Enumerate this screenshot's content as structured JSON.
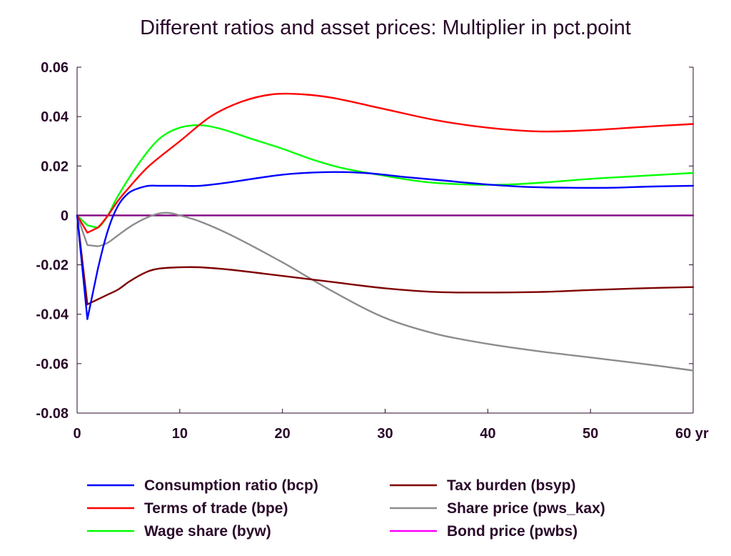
{
  "chart_data": {
    "type": "line",
    "title": "Different ratios and asset prices: Multiplier in pct.point",
    "x_unit_label": "yr",
    "xlim": [
      0,
      60
    ],
    "ylim": [
      -0.08,
      0.06
    ],
    "x_ticks": [
      0,
      10,
      20,
      30,
      40,
      50,
      60
    ],
    "x_tick_labels": [
      "0",
      "10",
      "20",
      "30",
      "40",
      "50",
      "60 yr"
    ],
    "y_ticks": [
      -0.08,
      -0.06,
      -0.04,
      -0.02,
      0,
      0.02,
      0.04,
      0.06
    ],
    "y_tick_labels": [
      "-0.08",
      "-0.06",
      "-0.04",
      "-0.02",
      "0",
      "0.02",
      "0.04",
      "0.06"
    ],
    "grid": false,
    "legend_position": "bottom",
    "series": [
      {
        "name": "Consumption ratio (bcp)",
        "color": "#0000ff",
        "points": [
          [
            0,
            0
          ],
          [
            1,
            -0.042
          ],
          [
            2,
            -0.022
          ],
          [
            3,
            -0.006
          ],
          [
            4,
            0.004
          ],
          [
            5,
            0.009
          ],
          [
            6,
            0.011
          ],
          [
            7,
            0.012
          ],
          [
            8,
            0.012
          ],
          [
            10,
            0.012
          ],
          [
            12,
            0.012
          ],
          [
            15,
            0.0135
          ],
          [
            20,
            0.0165
          ],
          [
            24,
            0.0175
          ],
          [
            28,
            0.0172
          ],
          [
            32,
            0.0155
          ],
          [
            36,
            0.014
          ],
          [
            40,
            0.0125
          ],
          [
            44,
            0.0115
          ],
          [
            48,
            0.0112
          ],
          [
            52,
            0.0112
          ],
          [
            56,
            0.0117
          ],
          [
            60,
            0.012
          ]
        ]
      },
      {
        "name": "Terms of trade (bpe)",
        "color": "#ff0000",
        "points": [
          [
            0,
            0
          ],
          [
            1,
            -0.007
          ],
          [
            2,
            -0.005
          ],
          [
            3,
            0.0
          ],
          [
            4,
            0.006
          ],
          [
            5,
            0.011
          ],
          [
            7,
            0.02
          ],
          [
            10,
            0.03
          ],
          [
            13,
            0.04
          ],
          [
            16,
            0.046
          ],
          [
            19,
            0.049
          ],
          [
            22,
            0.049
          ],
          [
            25,
            0.0475
          ],
          [
            30,
            0.043
          ],
          [
            35,
            0.0385
          ],
          [
            40,
            0.0355
          ],
          [
            45,
            0.034
          ],
          [
            50,
            0.0345
          ],
          [
            55,
            0.0358
          ],
          [
            60,
            0.037
          ]
        ]
      },
      {
        "name": "Wage share (byw)",
        "color": "#00ff00",
        "points": [
          [
            0,
            0
          ],
          [
            1,
            -0.004
          ],
          [
            2,
            -0.005
          ],
          [
            3,
            0.0
          ],
          [
            4,
            0.008
          ],
          [
            6,
            0.021
          ],
          [
            8,
            0.031
          ],
          [
            10,
            0.0355
          ],
          [
            12,
            0.0365
          ],
          [
            14,
            0.035
          ],
          [
            17,
            0.031
          ],
          [
            20,
            0.027
          ],
          [
            23,
            0.0225
          ],
          [
            26,
            0.019
          ],
          [
            30,
            0.016
          ],
          [
            34,
            0.0135
          ],
          [
            38,
            0.0125
          ],
          [
            42,
            0.0125
          ],
          [
            46,
            0.0135
          ],
          [
            50,
            0.0148
          ],
          [
            55,
            0.016
          ],
          [
            60,
            0.0172
          ]
        ]
      },
      {
        "name": "Tax burden (bsyp)",
        "color": "#7f0000",
        "points": [
          [
            0,
            0
          ],
          [
            1,
            -0.036
          ],
          [
            2,
            -0.034
          ],
          [
            3,
            -0.032
          ],
          [
            4,
            -0.03
          ],
          [
            5,
            -0.027
          ],
          [
            6,
            -0.0245
          ],
          [
            7,
            -0.0225
          ],
          [
            8,
            -0.0215
          ],
          [
            10,
            -0.021
          ],
          [
            12,
            -0.021
          ],
          [
            15,
            -0.022
          ],
          [
            20,
            -0.0245
          ],
          [
            25,
            -0.027
          ],
          [
            30,
            -0.0295
          ],
          [
            35,
            -0.031
          ],
          [
            40,
            -0.0312
          ],
          [
            45,
            -0.031
          ],
          [
            50,
            -0.0302
          ],
          [
            55,
            -0.0295
          ],
          [
            60,
            -0.029
          ]
        ]
      },
      {
        "name": "Share price (pws_kax)",
        "color": "#8c8c8c",
        "points": [
          [
            0,
            0
          ],
          [
            1,
            -0.012
          ],
          [
            2,
            -0.0125
          ],
          [
            3,
            -0.011
          ],
          [
            4,
            -0.008
          ],
          [
            5,
            -0.005
          ],
          [
            6,
            -0.0025
          ],
          [
            7,
            -0.0005
          ],
          [
            8,
            0.0008
          ],
          [
            9,
            0.001
          ],
          [
            10,
            0.0
          ],
          [
            12,
            -0.0025
          ],
          [
            15,
            -0.008
          ],
          [
            20,
            -0.019
          ],
          [
            25,
            -0.031
          ],
          [
            30,
            -0.0415
          ],
          [
            35,
            -0.048
          ],
          [
            40,
            -0.052
          ],
          [
            45,
            -0.055
          ],
          [
            50,
            -0.0575
          ],
          [
            55,
            -0.06
          ],
          [
            60,
            -0.0628
          ]
        ]
      },
      {
        "name": "Bond price (pwbs)",
        "color": "#ff00ff",
        "points": [
          [
            0,
            0
          ],
          [
            60,
            0
          ]
        ]
      }
    ]
  }
}
